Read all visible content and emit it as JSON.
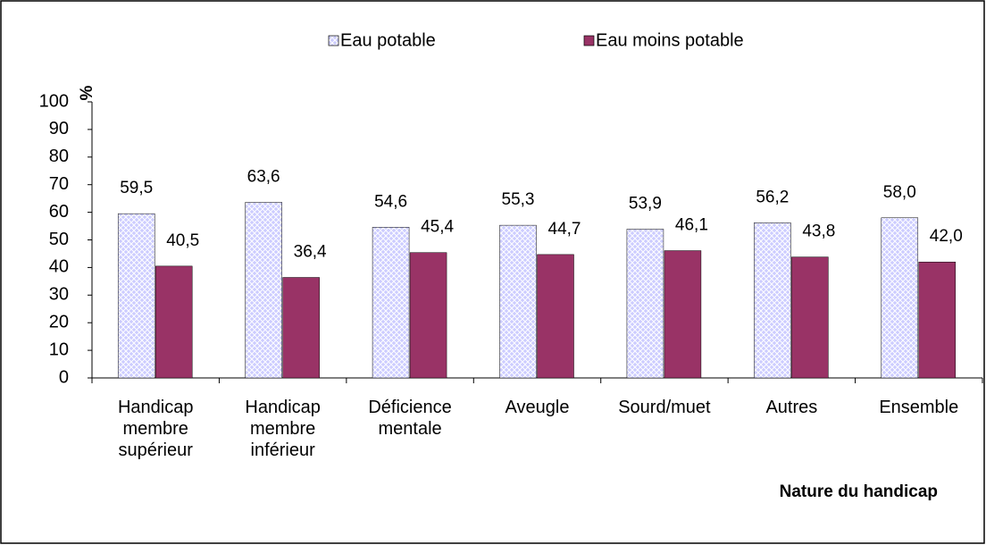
{
  "chart_data": {
    "type": "bar",
    "categories": [
      "Handicap membre supérieur",
      "Handicap membre inférieur",
      "Déficience mentale",
      "Aveugle",
      "Sourd/muet",
      "Autres",
      "Ensemble"
    ],
    "series": [
      {
        "name": "Eau potable",
        "color": "#ccccff",
        "values": [
          59.5,
          63.6,
          54.6,
          55.3,
          53.9,
          56.2,
          58.0
        ],
        "value_labels": [
          "59,5",
          "63,6",
          "54,6",
          "55,3",
          "53,9",
          "56,2",
          "58,0"
        ]
      },
      {
        "name": "Eau moins potable",
        "color": "#993366",
        "values": [
          40.5,
          36.4,
          45.4,
          44.7,
          46.1,
          43.8,
          42.0
        ],
        "value_labels": [
          "40,5",
          "36,4",
          "45,4",
          "44,7",
          "46,1",
          "43,8",
          "42,0"
        ]
      }
    ],
    "y_label": "%",
    "x_label": "Nature du handicap",
    "ylim": [
      0,
      100
    ],
    "yticks": [
      0,
      10,
      20,
      30,
      40,
      50,
      60,
      70,
      80,
      90,
      100
    ],
    "legend": "top",
    "grid": false
  }
}
